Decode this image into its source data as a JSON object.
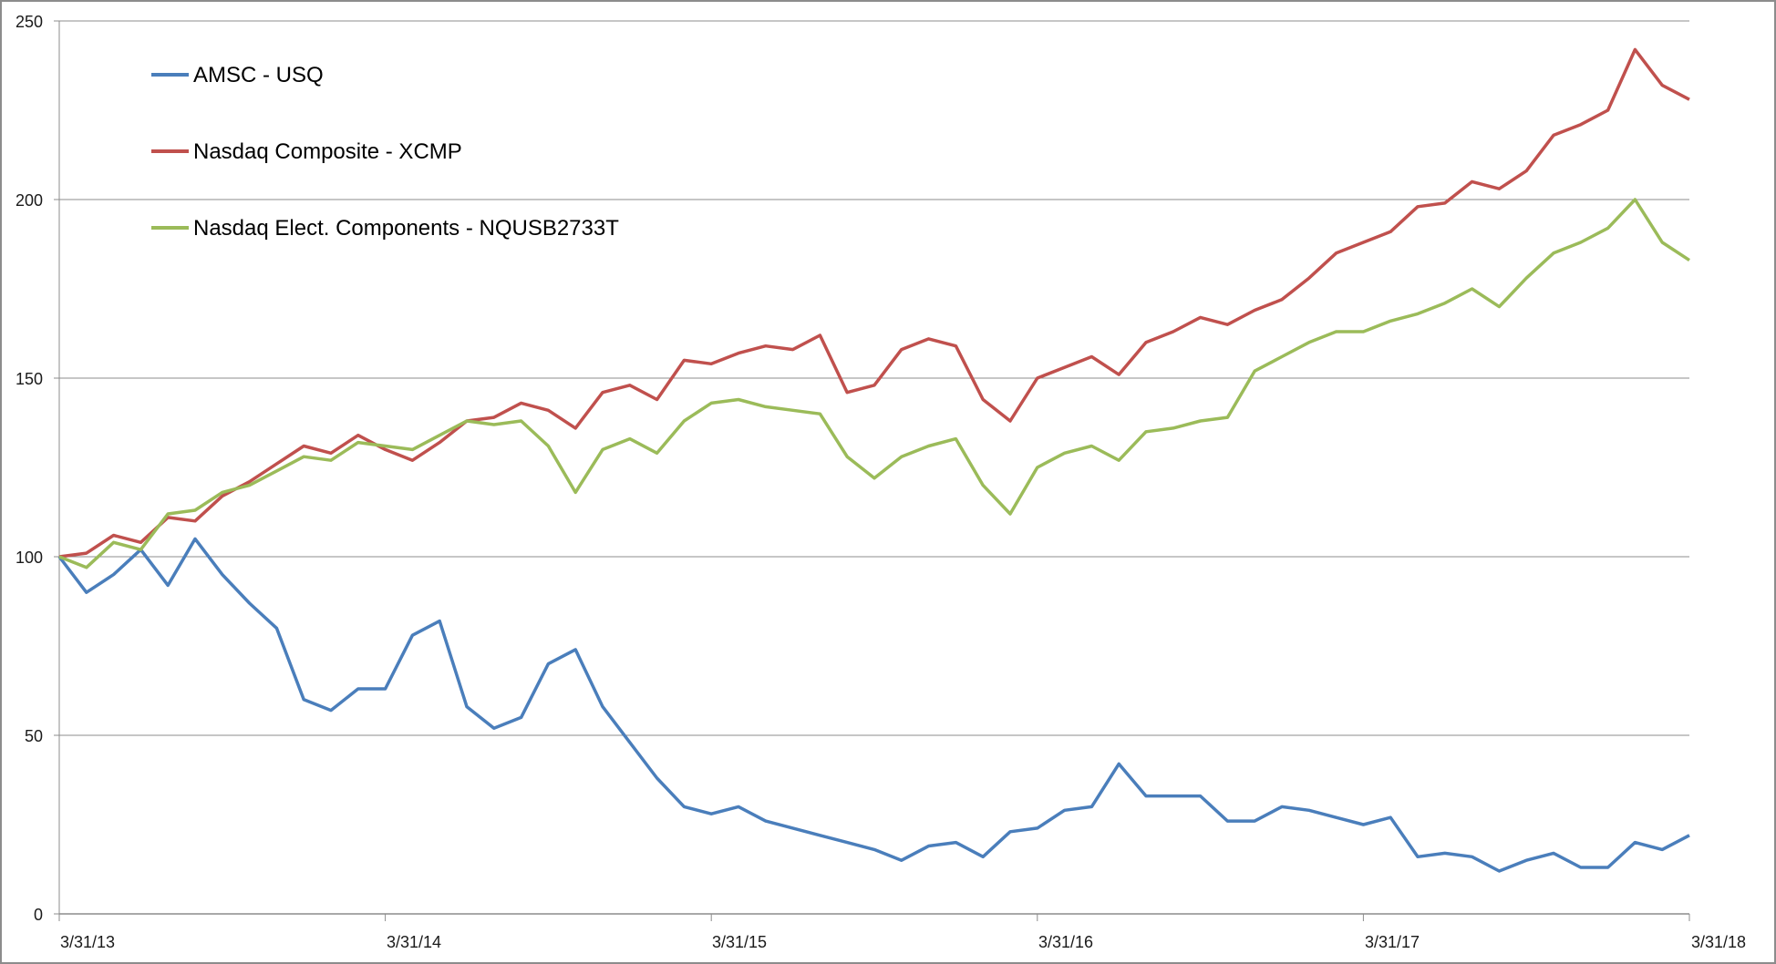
{
  "chart_data": {
    "type": "line",
    "title": "",
    "xlabel": "",
    "ylabel": "",
    "ylim": [
      0,
      250
    ],
    "yticks": [
      "0",
      "50",
      "100",
      "150",
      "200",
      "250"
    ],
    "xticks": [
      "3/31/13",
      "3/31/14",
      "3/31/15",
      "3/31/16",
      "3/31/17",
      "3/31/18"
    ],
    "grid": "horizontal",
    "legend_position": "upper-left-inside",
    "x": [
      "3/13",
      "4/13",
      "5/13",
      "6/13",
      "7/13",
      "8/13",
      "9/13",
      "10/13",
      "11/13",
      "12/13",
      "1/14",
      "2/14",
      "3/14",
      "4/14",
      "5/14",
      "6/14",
      "7/14",
      "8/14",
      "9/14",
      "10/14",
      "11/14",
      "12/14",
      "1/15",
      "2/15",
      "3/15",
      "4/15",
      "5/15",
      "6/15",
      "7/15",
      "8/15",
      "9/15",
      "10/15",
      "11/15",
      "12/15",
      "1/16",
      "2/16",
      "3/16",
      "4/16",
      "5/16",
      "6/16",
      "7/16",
      "8/16",
      "9/16",
      "10/16",
      "11/16",
      "12/16",
      "1/17",
      "2/17",
      "3/17",
      "4/17",
      "5/17",
      "6/17",
      "7/17",
      "8/17",
      "9/17",
      "10/17",
      "11/17",
      "12/17",
      "1/18",
      "2/18",
      "3/18"
    ],
    "series": [
      {
        "name": "AMSC - USQ",
        "color": "#4A7EBB",
        "values": [
          100,
          90,
          95,
          102,
          92,
          105,
          95,
          87,
          80,
          60,
          57,
          63,
          63,
          78,
          82,
          58,
          52,
          55,
          70,
          74,
          58,
          48,
          38,
          30,
          28,
          30,
          26,
          24,
          22,
          20,
          18,
          15,
          19,
          20,
          16,
          23,
          24,
          29,
          30,
          42,
          33,
          33,
          33,
          26,
          26,
          30,
          29,
          27,
          25,
          27,
          16,
          17,
          16,
          12,
          15,
          17,
          13,
          13,
          20,
          18,
          22
        ]
      },
      {
        "name": "Nasdaq Composite - XCMP",
        "color": "#C0504D",
        "values": [
          100,
          101,
          106,
          104,
          111,
          110,
          117,
          121,
          126,
          131,
          129,
          134,
          130,
          127,
          132,
          138,
          139,
          143,
          141,
          136,
          146,
          148,
          144,
          155,
          154,
          157,
          159,
          158,
          162,
          146,
          148,
          158,
          161,
          159,
          144,
          138,
          150,
          153,
          156,
          151,
          160,
          163,
          167,
          165,
          169,
          172,
          178,
          185,
          188,
          191,
          198,
          199,
          205,
          203,
          208,
          218,
          221,
          225,
          242,
          232,
          228
        ]
      },
      {
        "name": "Nasdaq Elect. Components - NQUSB2733T",
        "color": "#9BBB59",
        "values": [
          100,
          97,
          104,
          102,
          112,
          113,
          118,
          120,
          124,
          128,
          127,
          132,
          131,
          130,
          134,
          138,
          137,
          138,
          131,
          118,
          130,
          133,
          129,
          138,
          143,
          144,
          142,
          141,
          140,
          128,
          122,
          128,
          131,
          133,
          120,
          112,
          125,
          129,
          131,
          127,
          135,
          136,
          138,
          139,
          152,
          156,
          160,
          163,
          163,
          166,
          168,
          171,
          175,
          170,
          178,
          185,
          188,
          192,
          200,
          188,
          183
        ]
      }
    ]
  },
  "legend": {
    "items": [
      {
        "label": "AMSC - USQ",
        "color": "#4A7EBB"
      },
      {
        "label": "Nasdaq Composite - XCMP",
        "color": "#C0504D"
      },
      {
        "label": "Nasdaq Elect. Components - NQUSB2733T",
        "color": "#9BBB59"
      }
    ]
  },
  "axes": {
    "y_labels": [
      "0",
      "50",
      "100",
      "150",
      "200",
      "250"
    ],
    "x_labels": [
      "3/31/13",
      "3/31/14",
      "3/31/15",
      "3/31/16",
      "3/31/17",
      "3/31/18"
    ]
  },
  "colors": {
    "gridline": "#8c8c8c",
    "frame": "#8c8c8c"
  }
}
